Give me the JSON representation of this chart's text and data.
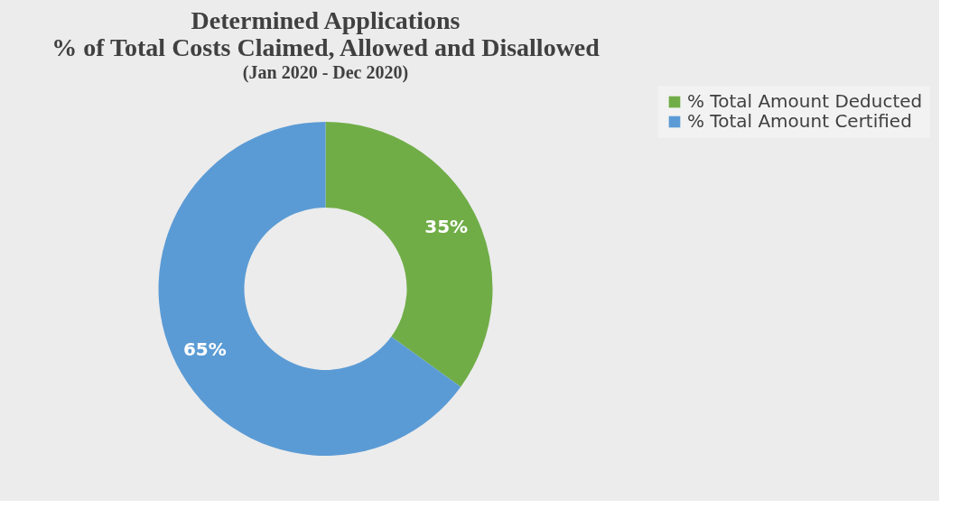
{
  "chart_data": {
    "type": "donut",
    "title": [
      "Determined Applications",
      "% of Total Costs Claimed, Allowed and Disallowed"
    ],
    "subtitle": "(Jan 2020 - Dec 2020)",
    "categories": [
      "% Total Amount Deducted",
      "% Total Amount Certified"
    ],
    "values": [
      35,
      65
    ],
    "colors": [
      "#70ad47",
      "#5b9bd5"
    ],
    "value_labels": [
      "35%",
      "65%"
    ],
    "legend": "right"
  }
}
